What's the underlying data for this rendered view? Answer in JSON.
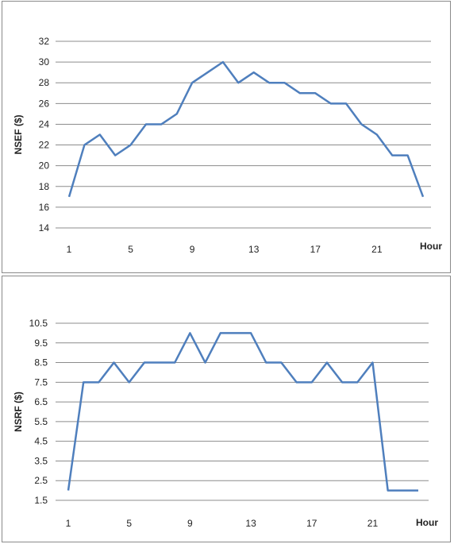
{
  "chart_data": [
    {
      "type": "line",
      "title": "",
      "ylabel": "NSEF ($)",
      "xlabel": "Hour",
      "ylim": [
        14,
        32
      ],
      "yticks": [
        "14",
        "16",
        "18",
        "20",
        "22",
        "24",
        "26",
        "28",
        "30",
        "32"
      ],
      "xticks": [
        "1",
        "5",
        "9",
        "13",
        "17",
        "21"
      ],
      "grid": true,
      "x": [
        1,
        2,
        3,
        4,
        5,
        6,
        7,
        8,
        9,
        10,
        11,
        12,
        13,
        14,
        15,
        16,
        17,
        18,
        19,
        20,
        21,
        22,
        23,
        24
      ],
      "series": [
        {
          "color": "#4f7fbd",
          "values": [
            17,
            22,
            23,
            21,
            22,
            24,
            24,
            25,
            28,
            29,
            30,
            28,
            29,
            28,
            28,
            27,
            27,
            26,
            26,
            24,
            23,
            21,
            21,
            17
          ]
        }
      ]
    },
    {
      "type": "line",
      "title": "",
      "ylabel": "NSRF ($)",
      "xlabel": "Hour",
      "ylim": [
        1.5,
        10.5
      ],
      "yticks": [
        "1.5",
        "2.5",
        "3.5",
        "4.5",
        "5.5",
        "6.5",
        "7.5",
        "8.5",
        "9.5",
        "10.5"
      ],
      "xticks": [
        "1",
        "5",
        "9",
        "13",
        "17",
        "21"
      ],
      "grid": true,
      "x": [
        1,
        2,
        3,
        4,
        5,
        6,
        7,
        8,
        9,
        10,
        11,
        12,
        13,
        14,
        15,
        16,
        17,
        18,
        19,
        20,
        21,
        22,
        23,
        24
      ],
      "series": [
        {
          "color": "#4f7fbd",
          "values": [
            2,
            7.5,
            7.5,
            8.5,
            7.5,
            8.5,
            8.5,
            8.5,
            10,
            8.5,
            10,
            10,
            10,
            8.5,
            8.5,
            7.5,
            7.5,
            8.5,
            7.5,
            7.5,
            8.5,
            2,
            2,
            2
          ]
        }
      ]
    }
  ]
}
